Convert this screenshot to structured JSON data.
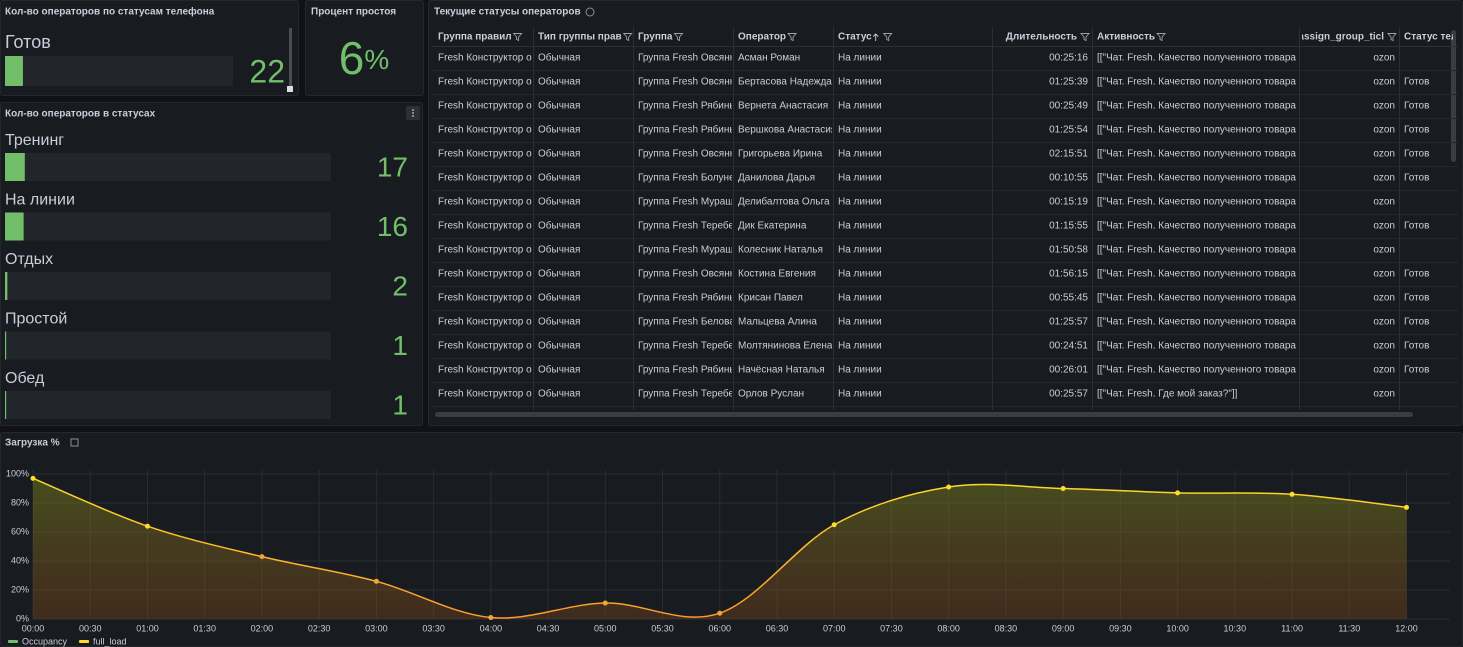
{
  "panels": {
    "phone_status": {
      "title": "Кол-во операторов по статусам телефона",
      "max": 280,
      "items": [
        {
          "label": "Готов",
          "value": 22
        }
      ]
    },
    "idle": {
      "title": "Процент простоя",
      "value": 6,
      "unit": "%"
    },
    "statuses": {
      "title": "Кол-во операторов в статусах",
      "max": 280,
      "items": [
        {
          "label": "Тренинг",
          "value": 17
        },
        {
          "label": "На линии",
          "value": 16
        },
        {
          "label": "Отдых",
          "value": 2
        },
        {
          "label": "Простой",
          "value": 1
        },
        {
          "label": "Обед",
          "value": 1
        }
      ]
    }
  },
  "table": {
    "title": "Текущие статусы операторов",
    "columns": [
      "Группа правил",
      "Тип группы прав",
      "Группа",
      "Оператор",
      "Статус",
      "Длительность",
      "Активность",
      "assign_group_ticl",
      "Статус теле"
    ],
    "rows": [
      [
        "Fresh Конструктор о",
        "Обычная",
        "Группа Fresh Овсянн",
        "Асман Роман",
        "На линии",
        "00:25:16",
        "[[\"Чат. Fresh. Качество полученного товара",
        "ozon",
        null
      ],
      [
        "Fresh Конструктор о",
        "Обычная",
        "Группа Fresh Овсянн",
        "Бертасова Надежда",
        "На линии",
        "01:25:39",
        "[[\"Чат. Fresh. Качество полученного товара",
        "ozon",
        "Готов"
      ],
      [
        "Fresh Конструктор о",
        "Обычная",
        "Группа Fresh Рябинь",
        "Вернета Анастасия",
        "На линии",
        "00:25:49",
        "[[\"Чат. Fresh. Качество полученного товара",
        "ozon",
        "Готов"
      ],
      [
        "Fresh Конструктор о",
        "Обычная",
        "Группа Fresh Рябинь",
        "Вершкова Анастасия",
        "На линии",
        "01:25:54",
        "[[\"Чат. Fresh. Качество полученного товара",
        "ozon",
        "Готов"
      ],
      [
        "Fresh Конструктор о",
        "Обычная",
        "Группа Fresh Овсянн",
        "Григорьева Ирина",
        "На линии",
        "02:15:51",
        "[[\"Чат. Fresh. Качество полученного товара",
        "ozon",
        "Готов"
      ],
      [
        "Fresh Конструктор о",
        "Обычная",
        "Группа Fresh Болуне",
        "Данилова Дарья",
        "На линии",
        "00:10:55",
        "[[\"Чат. Fresh. Качество полученного товара",
        "ozon",
        "Готов"
      ],
      [
        "Fresh Конструктор о",
        "Обычная",
        "Группа Fresh Мураш",
        "Делибалтова Ольга",
        "На линии",
        "00:15:19",
        "[[\"Чат. Fresh. Качество полученного товара",
        "ozon",
        null
      ],
      [
        "Fresh Конструктор о",
        "Обычная",
        "Группа Fresh Теребе",
        "Дик Екатерина",
        "На линии",
        "01:15:55",
        "[[\"Чат. Fresh. Качество полученного товара",
        "ozon",
        "Готов"
      ],
      [
        "Fresh Конструктор о",
        "Обычная",
        "Группа Fresh Мураш",
        "Колесник Наталья",
        "На линии",
        "01:50:58",
        "[[\"Чат. Fresh. Качество полученного товара",
        "ozon",
        null
      ],
      [
        "Fresh Конструктор о",
        "Обычная",
        "Группа Fresh Овсянн",
        "Костина Евгения",
        "На линии",
        "01:56:15",
        "[[\"Чат. Fresh. Качество полученного товара",
        "ozon",
        "Готов"
      ],
      [
        "Fresh Конструктор о",
        "Обычная",
        "Группа Fresh Рябинь",
        "Крисан Павел",
        "На линии",
        "00:55:45",
        "[[\"Чат. Fresh. Качество полученного товара",
        "ozon",
        "Готов"
      ],
      [
        "Fresh Конструктор о",
        "Обычная",
        "Группа Fresh Белова",
        "Мальцева Алина",
        "На линии",
        "01:25:57",
        "[[\"Чат. Fresh. Качество полученного товара",
        "ozon",
        "Готов"
      ],
      [
        "Fresh Конструктор о",
        "Обычная",
        "Группа Fresh Теребе",
        "Молтянинова Елена",
        "На линии",
        "00:24:51",
        "[[\"Чат. Fresh. Качество полученного товара",
        "ozon",
        "Готов"
      ],
      [
        "Fresh Конструктор о",
        "Обычная",
        "Группа Fresh Рябинь",
        "Начёсная Наталья",
        "На линии",
        "00:26:01",
        "[[\"Чат. Fresh. Качество полученного товара",
        "ozon",
        "Готов"
      ],
      [
        "Fresh Конструктор о",
        "Обычная",
        "Группа Fresh Теребе",
        "Орлов Руслан",
        "На линии",
        "00:25:57",
        "[[\"Чат. Fresh. Где мой заказ?\"]]",
        "ozon",
        null
      ]
    ]
  },
  "chart_data": {
    "type": "line",
    "title": "Загрузка %",
    "x": [
      0,
      1,
      2,
      3,
      4,
      5,
      6,
      7,
      8,
      9,
      10,
      11,
      12
    ],
    "series": [
      {
        "name": "full_load",
        "color": "#fade2a",
        "values": [
          97,
          64,
          43,
          26,
          1,
          11,
          4,
          65,
          91,
          90,
          87,
          86,
          77
        ]
      }
    ],
    "legend_only": [
      {
        "name": "Occupancy",
        "color": "#73bf69"
      }
    ],
    "xlim": [
      0,
      12.38
    ],
    "xticks": [
      {
        "value": 0,
        "label": "00:00"
      },
      {
        "value": 0.5,
        "label": "00:30"
      },
      {
        "value": 1,
        "label": "01:00"
      },
      {
        "value": 1.5,
        "label": "01:30"
      },
      {
        "value": 2,
        "label": "02:00"
      },
      {
        "value": 2.5,
        "label": "02:30"
      },
      {
        "value": 3,
        "label": "03:00"
      },
      {
        "value": 3.5,
        "label": "03:30"
      },
      {
        "value": 4,
        "label": "04:00"
      },
      {
        "value": 4.5,
        "label": "04:30"
      },
      {
        "value": 5,
        "label": "05:00"
      },
      {
        "value": 5.5,
        "label": "05:30"
      },
      {
        "value": 6,
        "label": "06:00"
      },
      {
        "value": 6.5,
        "label": "06:30"
      },
      {
        "value": 7,
        "label": "07:00"
      },
      {
        "value": 7.5,
        "label": "07:30"
      },
      {
        "value": 8,
        "label": "08:00"
      },
      {
        "value": 8.5,
        "label": "08:30"
      },
      {
        "value": 9,
        "label": "09:00"
      },
      {
        "value": 9.5,
        "label": "09:30"
      },
      {
        "value": 10,
        "label": "10:00"
      },
      {
        "value": 10.5,
        "label": "10:30"
      },
      {
        "value": 11,
        "label": "11:00"
      },
      {
        "value": 11.5,
        "label": "11:30"
      },
      {
        "value": 12,
        "label": "12:00"
      }
    ],
    "ylim": [
      0,
      100
    ],
    "yticks": [
      {
        "value": 0,
        "label": "0%"
      },
      {
        "value": 20,
        "label": "20%"
      },
      {
        "value": 40,
        "label": "40%"
      },
      {
        "value": 60,
        "label": "60%"
      },
      {
        "value": 80,
        "label": "80%"
      },
      {
        "value": 100,
        "label": "100%"
      }
    ],
    "grid": true
  }
}
